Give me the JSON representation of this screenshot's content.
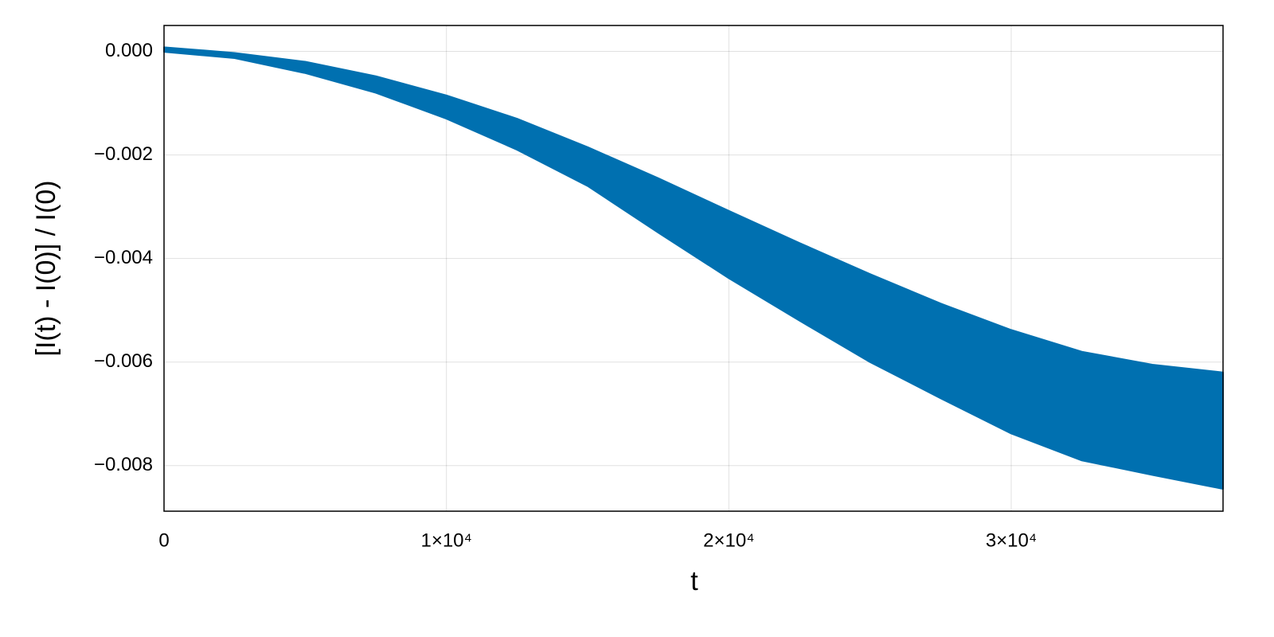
{
  "chart_data": {
    "type": "band",
    "x_label": "t",
    "y_label": "[I(t) - I(0)] / I(0)",
    "x": [
      0,
      2500,
      5000,
      7500,
      10000,
      12500,
      15000,
      17500,
      20000,
      22500,
      25000,
      27500,
      30000,
      32500,
      35000,
      37500
    ],
    "upper": [
      8e-05,
      -3e-05,
      -0.0002,
      -0.00048,
      -0.00085,
      -0.0013,
      -0.00185,
      -0.00245,
      -0.00308,
      -0.0037,
      -0.0043,
      -0.00487,
      -0.00538,
      -0.0058,
      -0.00605,
      -0.0062
    ],
    "lower": [
      -1e-05,
      -0.00013,
      -0.00042,
      -0.0008,
      -0.0013,
      -0.0019,
      -0.0026,
      -0.0035,
      -0.00438,
      -0.0052,
      -0.006,
      -0.0067,
      -0.00738,
      -0.0079,
      -0.00818,
      -0.00845
    ],
    "color": "#0070b0",
    "xlim": [
      0,
      37500
    ],
    "ylim": [
      -0.00888,
      0.0005
    ],
    "xticks": [
      0,
      {
        "value": 10000,
        "label": "1×10⁴"
      },
      {
        "value": 20000,
        "label": "2×10⁴"
      },
      {
        "value": 30000,
        "label": "3×10⁴"
      }
    ],
    "yticks": [
      {
        "value": 0,
        "label": "0.000"
      },
      {
        "value": -0.002,
        "label": "−0.002"
      },
      {
        "value": -0.004,
        "label": "−0.004"
      },
      {
        "value": -0.006,
        "label": "−0.006"
      },
      {
        "value": -0.008,
        "label": "−0.008"
      }
    ],
    "grid": true
  }
}
